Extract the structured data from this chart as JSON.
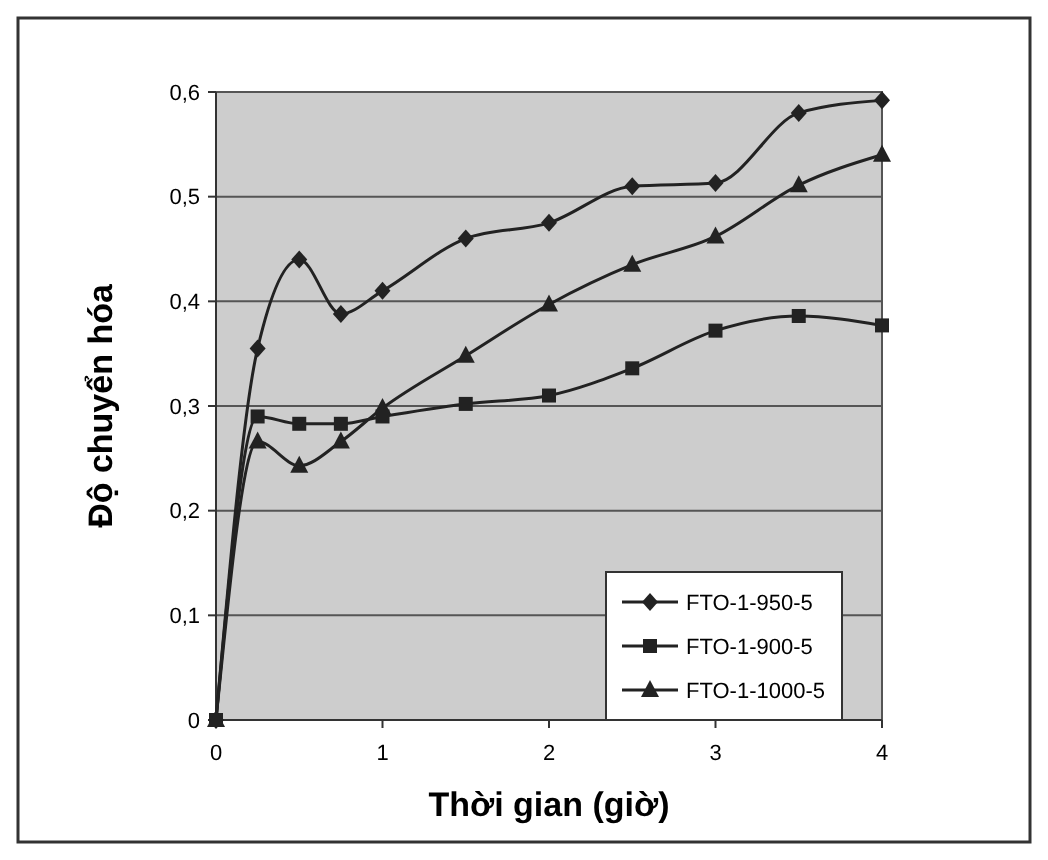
{
  "chart_data": {
    "type": "line",
    "xlabel": "Thời gian (giờ)",
    "ylabel": "Độ chuyển hóa",
    "x": [
      0,
      0.25,
      0.5,
      0.75,
      1,
      1.5,
      2,
      2.5,
      3,
      3.5,
      4
    ],
    "series": [
      {
        "name": "FTO-1-950-5",
        "color": "#222222",
        "marker": "diamond",
        "values": [
          0,
          0.355,
          0.44,
          0.388,
          0.41,
          0.46,
          0.475,
          0.51,
          0.513,
          0.58,
          0.592
        ]
      },
      {
        "name": "FTO-1-900-5",
        "color": "#222222",
        "marker": "square",
        "values": [
          0,
          0.29,
          0.283,
          0.283,
          0.29,
          0.302,
          0.31,
          0.336,
          0.372,
          0.386,
          0.377
        ]
      },
      {
        "name": "FTO-1-1000-5",
        "color": "#222222",
        "marker": "triangle",
        "values": [
          0,
          0.266,
          0.243,
          0.266,
          0.298,
          0.348,
          0.397,
          0.435,
          0.462,
          0.511,
          0.54
        ]
      }
    ],
    "xlim": [
      0,
      4
    ],
    "xticks": [
      0,
      1,
      2,
      3,
      4
    ],
    "ylim": [
      0,
      0.6
    ],
    "yticks": [
      0,
      {
        "value": 0.1,
        "label": "0,1"
      },
      {
        "value": 0.2,
        "label": "0,2"
      },
      {
        "value": 0.3,
        "label": "0,3"
      },
      {
        "value": 0.4,
        "label": "0,4"
      },
      {
        "value": 0.5,
        "label": "0,5"
      },
      {
        "value": 0.6,
        "label": "0,6"
      }
    ],
    "grid": "y",
    "legend": "bottom right",
    "line_style": "solid"
  }
}
